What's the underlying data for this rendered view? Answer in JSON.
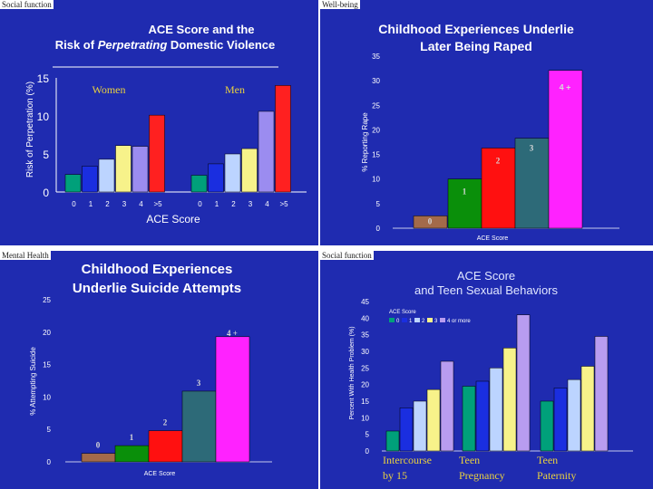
{
  "panels": [
    {
      "tag": "Social function"
    },
    {
      "tag": "Well-being"
    },
    {
      "tag": "Mental Health"
    },
    {
      "tag": "Social function"
    }
  ],
  "colors": {
    "background": "#1f2bb0",
    "title": "#ffffff",
    "axis_text": "#ffffff",
    "label_gold": "#e8d040",
    "bar_palette": [
      "#00a07a",
      "#1a2ee0",
      "#bcd4ff",
      "#f7f28a",
      "#9b8cf0",
      "#ff2020"
    ]
  },
  "chart_data": [
    {
      "id": "ace-dv",
      "type": "bar",
      "title_line1": "ACE Score and the",
      "title_line2_pre": "Risk of ",
      "title_line2_italic": "Perpetrating",
      "title_line2_post": " Domestic Violence",
      "ylabel": "Risk of Perpetration (%)",
      "xlabel": "ACE Score",
      "ylim": [
        0,
        15
      ],
      "yticks": [
        "0",
        "5",
        "10",
        "15"
      ],
      "groups": [
        {
          "name": "Women",
          "categories": [
            "0",
            "1",
            "2",
            "3",
            "4",
            ">5"
          ],
          "values": [
            2.3,
            3.4,
            4.3,
            6.1,
            6.0,
            10.1
          ]
        },
        {
          "name": "Men",
          "categories": [
            "0",
            "1",
            "2",
            "3",
            "4",
            ">5"
          ],
          "values": [
            2.2,
            3.7,
            5.0,
            5.7,
            10.6,
            14.0
          ]
        }
      ]
    },
    {
      "id": "ace-raped",
      "type": "bar",
      "title_line1": "Childhood Experiences Underlie",
      "title_line2": "Later Being Raped",
      "ylabel": "% Reporting Rape",
      "xlabel": "ACE Score",
      "ylim": [
        0,
        35
      ],
      "yticks": [
        "0",
        "5",
        "10",
        "15",
        "20",
        "25",
        "30",
        "35"
      ],
      "categories": [
        "0",
        "1",
        "2",
        "3",
        "4"
      ],
      "values": [
        2.5,
        10.0,
        16.3,
        18.3,
        32.1
      ],
      "colors": [
        "#a36a4a",
        "#0a8f0a",
        "#ff1010",
        "#2d6a78",
        "#ff22ff"
      ],
      "bar_labels": [
        "0",
        "1",
        "2",
        "3",
        "4 +"
      ]
    },
    {
      "id": "ace-suicide",
      "type": "bar",
      "title_line1": "Childhood Experiences",
      "title_line2": "Underlie Suicide Attempts",
      "ylabel": "% Attempting Suicide",
      "xlabel": "ACE Score",
      "ylim": [
        0,
        25
      ],
      "yticks": [
        "0",
        "5",
        "10",
        "15",
        "20",
        "25"
      ],
      "categories": [
        "0",
        "1",
        "2",
        "3",
        "4"
      ],
      "values": [
        1.3,
        2.5,
        4.8,
        10.9,
        19.3
      ],
      "colors": [
        "#a36a4a",
        "#0a8f0a",
        "#ff1010",
        "#2d6a78",
        "#ff22ff"
      ],
      "bar_labels": [
        "0",
        "1",
        "2",
        "3",
        "4 +"
      ]
    },
    {
      "id": "ace-teen",
      "type": "bar",
      "title_line1": "ACE Score",
      "title_line2": "and Teen Sexual Behaviors",
      "ylabel": "Percent With Health Problem (%)",
      "ylim": [
        0,
        45
      ],
      "yticks": [
        "0",
        "5",
        "10",
        "15",
        "20",
        "25",
        "30",
        "35",
        "40",
        "45"
      ],
      "legend_title": "ACE Score",
      "series": [
        {
          "name": "0",
          "color": "#00a07a",
          "values": [
            6,
            19.5,
            15
          ]
        },
        {
          "name": "1",
          "color": "#1a2ee0",
          "values": [
            13,
            21,
            19
          ]
        },
        {
          "name": "2",
          "color": "#bcd4ff",
          "values": [
            15,
            25,
            21.5
          ]
        },
        {
          "name": "3",
          "color": "#f7f28a",
          "values": [
            18.5,
            31,
            25.5
          ]
        },
        {
          "name": "4 or more",
          "color": "#b89cf0",
          "values": [
            27,
            41,
            34.5
          ]
        }
      ],
      "categories": [
        {
          "line1": "Intercourse",
          "line2": "by 15"
        },
        {
          "line1": "Teen",
          "line2": "Pregnancy"
        },
        {
          "line1": "Teen",
          "line2": "Paternity"
        }
      ]
    }
  ]
}
